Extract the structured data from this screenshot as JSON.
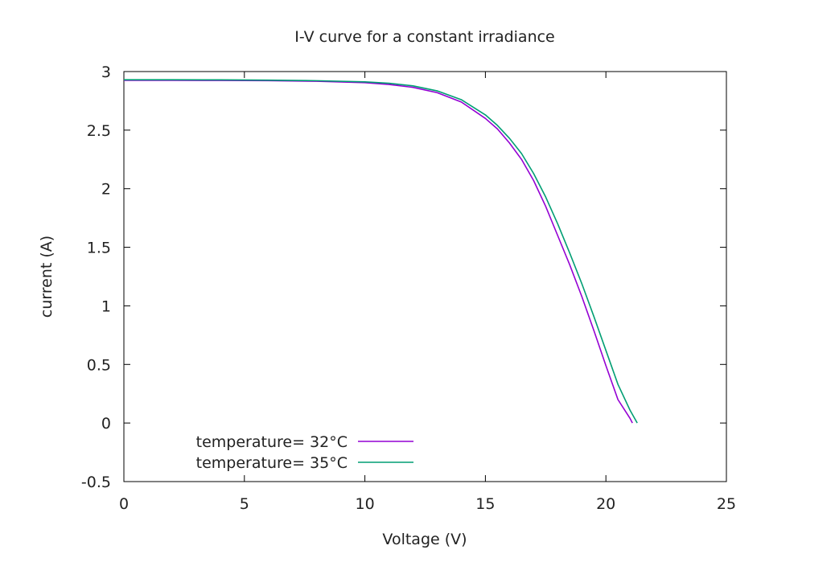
{
  "chart_data": {
    "type": "line",
    "title": "I-V curve for a constant irradiance",
    "xlabel": "Voltage (V)",
    "ylabel": "current (A)",
    "xlim": [
      0,
      25
    ],
    "ylim": [
      -0.5,
      3
    ],
    "xticks": [
      0,
      5,
      10,
      15,
      20,
      25
    ],
    "yticks": [
      -0.5,
      0,
      0.5,
      1,
      1.5,
      2,
      2.5,
      3
    ],
    "xtick_labels": [
      "0",
      "5",
      "10",
      "15",
      "20",
      "25"
    ],
    "ytick_labels": [
      "-0.5",
      "0",
      "0.5",
      "1",
      "1.5",
      "2",
      "2.5",
      "3"
    ],
    "grid": false,
    "legend_position": "bottom-left",
    "series": [
      {
        "name": "temperature= 32°C",
        "color": "#9400d3",
        "x": [
          0,
          2,
          4,
          6,
          8,
          10,
          11,
          12,
          13,
          14,
          15,
          15.5,
          16,
          16.5,
          17,
          17.5,
          18,
          18.5,
          19,
          19.5,
          20,
          20.5,
          21,
          21.1
        ],
        "y": [
          2.925,
          2.925,
          2.924,
          2.922,
          2.917,
          2.905,
          2.89,
          2.865,
          2.82,
          2.74,
          2.6,
          2.51,
          2.39,
          2.25,
          2.07,
          1.85,
          1.6,
          1.35,
          1.08,
          0.79,
          0.49,
          0.2,
          0.04,
          0.0
        ]
      },
      {
        "name": "temperature= 35°C",
        "color": "#009e73",
        "x": [
          0,
          2,
          4,
          6,
          8,
          10,
          11,
          12,
          13,
          14,
          15,
          15.5,
          16,
          16.5,
          17,
          17.5,
          18,
          18.5,
          19,
          19.5,
          20,
          20.5,
          21,
          21.3
        ],
        "y": [
          2.93,
          2.93,
          2.929,
          2.927,
          2.922,
          2.912,
          2.9,
          2.878,
          2.835,
          2.76,
          2.63,
          2.54,
          2.43,
          2.3,
          2.13,
          1.93,
          1.7,
          1.45,
          1.19,
          0.91,
          0.62,
          0.33,
          0.11,
          0.0
        ]
      }
    ]
  }
}
